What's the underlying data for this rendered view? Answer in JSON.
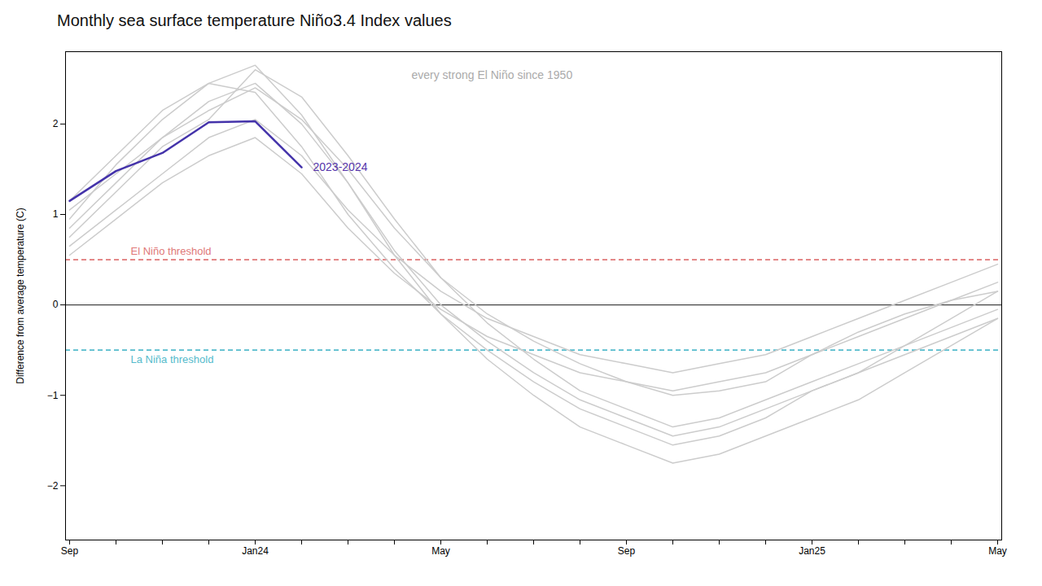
{
  "chart_data": {
    "type": "line",
    "title": "Monthly sea surface temperature Niño3.4 Index values",
    "ylabel": "Difference from average temperature (C)",
    "categories": [
      "Sep",
      null,
      null,
      null,
      "Jan24",
      null,
      null,
      null,
      "May",
      null,
      null,
      null,
      "Sep",
      null,
      null,
      null,
      "Jan25",
      null,
      null,
      null,
      "May"
    ],
    "series": [
      {
        "color": "#cccccc",
        "values": [
          1.05,
          1.45,
          1.85,
          2.15,
          2.4,
          2.05,
          1.5,
          0.85,
          0.3,
          -0.1,
          -0.4,
          -0.65,
          -0.85,
          -1.0,
          -0.95,
          -0.85,
          -0.55,
          -0.3,
          -0.1,
          0.05,
          0.15
        ]
      },
      {
        "color": "#cccccc",
        "values": [
          0.75,
          1.25,
          1.75,
          2.05,
          2.6,
          2.3,
          1.65,
          0.95,
          0.3,
          -0.2,
          -0.6,
          -0.95,
          -1.15,
          -1.35,
          -1.25,
          -1.05,
          -0.85,
          -0.65,
          -0.45,
          -0.25,
          -0.05
        ]
      },
      {
        "color": "#cccccc",
        "values": [
          0.95,
          1.55,
          2.05,
          2.45,
          2.65,
          2.1,
          1.35,
          0.55,
          -0.1,
          -0.6,
          -1.0,
          -1.35,
          -1.55,
          -1.75,
          -1.65,
          -1.45,
          -1.25,
          -1.05,
          -0.75,
          -0.45,
          -0.15
        ]
      },
      {
        "color": "#cccccc",
        "values": [
          0.85,
          1.35,
          1.85,
          2.25,
          2.45,
          2.0,
          1.35,
          0.6,
          0.0,
          -0.4,
          -0.75,
          -1.05,
          -1.25,
          -1.45,
          -1.35,
          -1.15,
          -0.95,
          -0.75,
          -0.55,
          -0.35,
          -0.15
        ]
      },
      {
        "color": "#cccccc",
        "values": [
          1.15,
          1.65,
          2.15,
          2.45,
          2.35,
          1.75,
          1.0,
          0.4,
          -0.1,
          -0.5,
          -0.85,
          -1.15,
          -1.35,
          -1.55,
          -1.45,
          -1.25,
          -0.95,
          -0.75,
          -0.45,
          -0.15,
          0.15
        ]
      },
      {
        "color": "#cccccc",
        "values": [
          0.65,
          1.05,
          1.45,
          1.85,
          2.05,
          1.65,
          1.05,
          0.55,
          0.15,
          -0.15,
          -0.35,
          -0.55,
          -0.65,
          -0.75,
          -0.65,
          -0.55,
          -0.35,
          -0.15,
          0.05,
          0.25,
          0.45
        ]
      },
      {
        "color": "#cccccc",
        "values": [
          0.55,
          0.95,
          1.35,
          1.65,
          1.85,
          1.45,
          0.85,
          0.35,
          -0.05,
          -0.35,
          -0.55,
          -0.75,
          -0.85,
          -0.95,
          -0.85,
          -0.75,
          -0.55,
          -0.35,
          -0.15,
          0.05,
          0.25
        ]
      },
      {
        "color": "#4433aa",
        "values": [
          1.15,
          1.48,
          1.68,
          2.02,
          2.03,
          1.52,
          null,
          null,
          null,
          null,
          null,
          null,
          null,
          null,
          null,
          null,
          null,
          null,
          null,
          null,
          null
        ]
      }
    ],
    "reference_lines": [
      {
        "value": 0.5,
        "label": "El Niño threshold",
        "color": "#e07878",
        "line_style": "dashed"
      },
      {
        "value": -0.5,
        "label": "La Niña threshold",
        "color": "#55bbcc",
        "line_style": "dashed"
      },
      {
        "value": 0.0,
        "color": "#444444",
        "line_style": "solid"
      }
    ],
    "annotations": [
      {
        "text": "every strong El Niño since 1950",
        "color": "#aaaaaa"
      },
      {
        "text": "2023-2024",
        "color": "#5533aa"
      }
    ],
    "ylim": [
      -2.6,
      2.8
    ],
    "yticks": [
      -2,
      -1,
      0,
      1,
      2
    ],
    "grid": false
  }
}
